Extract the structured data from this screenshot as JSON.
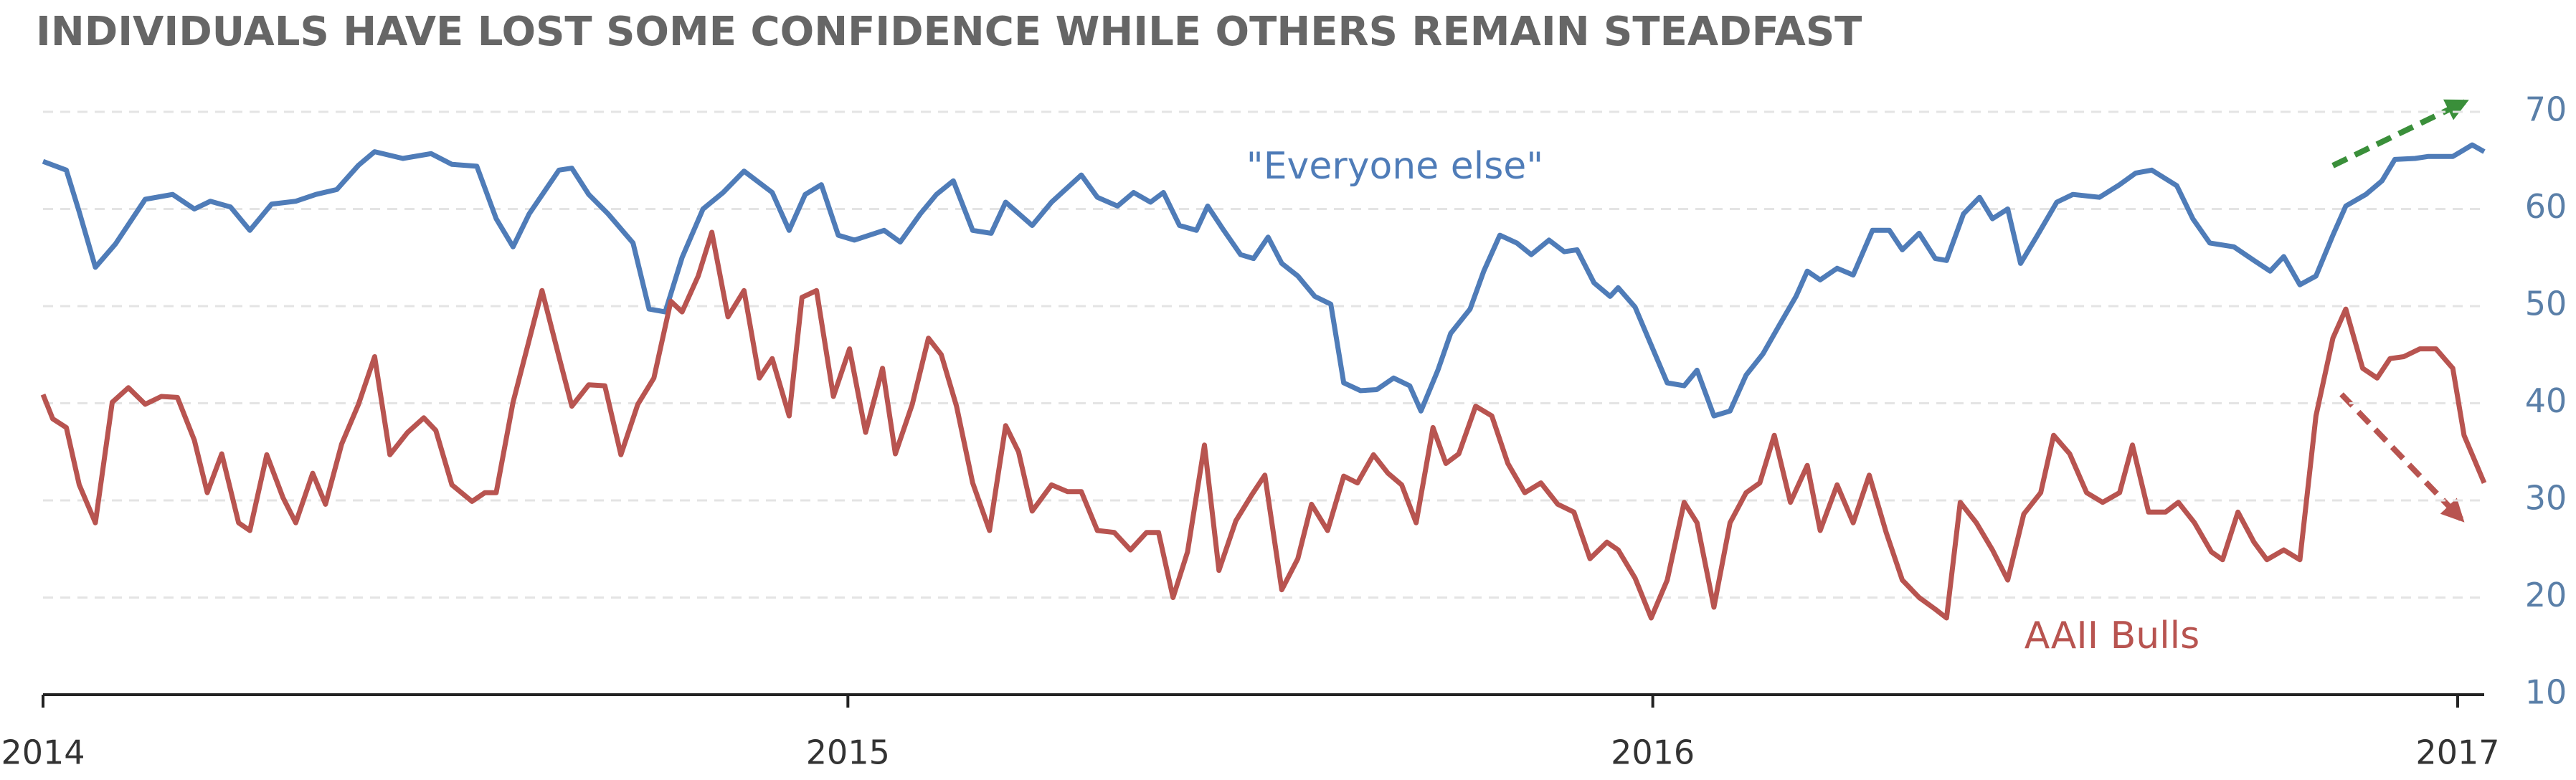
{
  "chart_data": {
    "type": "line",
    "title": "INDIVIDUALS HAVE LOST SOME CONFIDENCE WHILE OTHERS REMAIN STEADFAST",
    "xlim": [
      2014,
      2017.033
    ],
    "xticks": [
      2014,
      2015,
      2016,
      2017
    ],
    "ylim": [
      10,
      70
    ],
    "yticks": [
      10,
      20,
      30,
      40,
      50,
      60,
      70
    ],
    "grid": true,
    "series": [
      {
        "name": "\"Everyone else\"",
        "color": "#4f7cb8",
        "x": [
          2014.0,
          2014.029,
          2014.045,
          2014.065,
          2014.09,
          2014.127,
          2014.161,
          2014.188,
          2014.208,
          2014.233,
          2014.257,
          2014.284,
          2014.314,
          2014.339,
          2014.365,
          2014.392,
          2014.412,
          2014.447,
          2014.482,
          2014.508,
          2014.539,
          2014.563,
          2014.584,
          2014.604,
          2014.641,
          2014.657,
          2014.678,
          2014.702,
          2014.733,
          2014.753,
          2014.773,
          2014.794,
          2014.82,
          2014.845,
          2014.871,
          2014.906,
          2014.927,
          2014.947,
          2014.967,
          2014.988,
          2015.008,
          2015.045,
          2015.065,
          2015.09,
          2015.11,
          2015.131,
          2015.155,
          2015.178,
          2015.196,
          2015.229,
          2015.253,
          2015.29,
          2015.31,
          2015.335,
          2015.355,
          2015.376,
          2015.392,
          2015.412,
          2015.433,
          2015.447,
          2015.467,
          2015.488,
          2015.504,
          2015.522,
          2015.539,
          2015.559,
          2015.58,
          2015.6,
          2015.616,
          2015.637,
          2015.657,
          2015.678,
          2015.698,
          2015.712,
          2015.733,
          2015.749,
          2015.773,
          2015.79,
          2015.81,
          2015.831,
          2015.849,
          2015.871,
          2015.89,
          2015.906,
          2015.927,
          2015.947,
          2015.957,
          2015.978,
          2015.998,
          2016.018,
          2016.039,
          2016.055,
          2016.076,
          2016.096,
          2016.116,
          2016.137,
          2016.157,
          2016.178,
          2016.192,
          2016.208,
          2016.229,
          2016.249,
          2016.273,
          2016.294,
          2016.31,
          2016.331,
          2016.351,
          2016.365,
          2016.386,
          2016.406,
          2016.422,
          2016.441,
          2016.457,
          2016.478,
          2016.502,
          2016.522,
          2016.555,
          2016.58,
          2016.6,
          2016.62,
          2016.651,
          2016.671,
          2016.692,
          2016.722,
          2016.747,
          2016.767,
          2016.784,
          2016.804,
          2016.824,
          2016.845,
          2016.861,
          2016.886,
          2016.906,
          2016.922,
          2016.947,
          2016.963,
          2016.994,
          2017.018,
          2017.033
        ],
        "values": [
          64.9,
          64,
          59.7,
          54,
          56.4,
          61,
          61.5,
          60,
          60.8,
          60.2,
          57.8,
          60.5,
          60.8,
          61.5,
          62,
          64.5,
          65.9,
          65.2,
          65.7,
          64.6,
          64.4,
          59,
          56.1,
          59.5,
          64,
          64.2,
          61.5,
          59.5,
          56.5,
          49.7,
          49.4,
          55,
          60,
          61.7,
          63.9,
          61.7,
          57.8,
          61.5,
          62.5,
          57.3,
          56.8,
          57.8,
          56.6,
          59.5,
          61.5,
          62.9,
          57.8,
          57.5,
          60.7,
          58.3,
          60.7,
          63.5,
          61.2,
          60.3,
          61.7,
          60.7,
          61.7,
          58.3,
          57.8,
          60.3,
          57.8,
          55.3,
          54.9,
          57.1,
          54.4,
          53.1,
          51,
          50.2,
          42.1,
          41.3,
          41.4,
          42.6,
          41.8,
          39.2,
          43.4,
          47.2,
          49.7,
          53.6,
          57.3,
          56.5,
          55.3,
          56.8,
          55.6,
          55.8,
          52.4,
          51,
          51.9,
          49.9,
          46,
          42.1,
          41.8,
          43.4,
          38.7,
          39.2,
          42.9,
          45.1,
          48,
          51,
          53.6,
          52.7,
          53.9,
          53.2,
          57.8,
          57.8,
          55.8,
          57.5,
          54.9,
          54.7,
          59.5,
          61.2,
          59,
          60,
          54.4,
          57.3,
          60.7,
          61.5,
          61.2,
          62.5,
          63.7,
          64,
          62.4,
          59,
          56.5,
          56.1,
          54.7,
          53.6,
          55.1,
          52.2,
          53.1,
          57.3,
          60.3,
          61.5,
          62.9,
          65.1,
          65.2,
          65.4,
          65.4,
          66.6,
          65.9
        ]
      },
      {
        "name": "AAII Bulls",
        "color": "#b85450",
        "x": [
          2014.0,
          2014.012,
          2014.029,
          2014.045,
          2014.065,
          2014.086,
          2014.106,
          2014.127,
          2014.147,
          2014.167,
          2014.188,
          2014.204,
          2014.222,
          2014.243,
          2014.257,
          2014.278,
          2014.298,
          2014.314,
          2014.335,
          2014.351,
          2014.371,
          2014.392,
          2014.412,
          2014.431,
          2014.453,
          2014.473,
          2014.488,
          2014.508,
          2014.533,
          2014.549,
          2014.563,
          2014.584,
          2014.62,
          2014.641,
          2014.657,
          2014.678,
          2014.698,
          2014.718,
          2014.739,
          2014.759,
          2014.78,
          2014.794,
          2014.814,
          2014.831,
          2014.851,
          2014.871,
          2014.89,
          2014.906,
          2014.927,
          2014.943,
          2014.961,
          2014.982,
          2015.002,
          2015.022,
          2015.043,
          2015.059,
          2015.08,
          2015.1,
          2015.116,
          2015.135,
          2015.155,
          2015.176,
          2015.196,
          2015.212,
          2015.229,
          2015.253,
          2015.273,
          2015.29,
          2015.31,
          2015.331,
          2015.351,
          2015.371,
          2015.386,
          2015.404,
          2015.422,
          2015.443,
          2015.461,
          2015.482,
          2015.502,
          2015.518,
          2015.539,
          2015.559,
          2015.576,
          2015.596,
          2015.616,
          2015.633,
          2015.653,
          2015.671,
          2015.688,
          2015.706,
          2015.727,
          2015.743,
          2015.759,
          2015.78,
          2015.8,
          2015.82,
          2015.841,
          2015.861,
          2015.882,
          2015.902,
          2015.922,
          2015.943,
          2015.957,
          2015.978,
          2015.998,
          2016.018,
          2016.039,
          2016.055,
          2016.076,
          2016.096,
          2016.116,
          2016.133,
          2016.151,
          2016.171,
          2016.192,
          2016.208,
          2016.229,
          2016.249,
          2016.269,
          2016.29,
          2016.31,
          2016.331,
          2016.351,
          2016.365,
          2016.382,
          2016.402,
          2016.422,
          2016.441,
          2016.461,
          2016.482,
          2016.498,
          2016.518,
          2016.539,
          2016.559,
          2016.58,
          2016.596,
          2016.616,
          2016.637,
          2016.653,
          2016.673,
          2016.694,
          2016.708,
          2016.727,
          2016.747,
          2016.763,
          2016.784,
          2016.804,
          2016.824,
          2016.845,
          2016.861,
          2016.882,
          2016.9,
          2016.916,
          2016.933,
          2016.953,
          2016.973,
          2016.994,
          2017.008,
          2017.033
        ],
        "values": [
          40.9,
          38.4,
          37.5,
          31.6,
          27.7,
          40.1,
          41.6,
          39.9,
          40.7,
          40.6,
          36.2,
          30.8,
          34.8,
          27.7,
          26.9,
          34.7,
          30.3,
          27.7,
          32.8,
          29.6,
          35.8,
          39.9,
          44.8,
          34.7,
          37,
          38.5,
          37.2,
          31.6,
          29.9,
          30.8,
          30.8,
          40.1,
          51.6,
          44.8,
          39.7,
          41.9,
          41.8,
          34.7,
          39.9,
          42.6,
          50.5,
          49.4,
          53.1,
          57.6,
          48.9,
          51.6,
          42.6,
          44.6,
          38.7,
          50.9,
          51.6,
          40.7,
          45.6,
          37,
          43.6,
          34.8,
          39.9,
          46.7,
          45,
          39.7,
          31.8,
          26.9,
          37.7,
          35,
          28.9,
          31.6,
          30.9,
          30.9,
          26.9,
          26.7,
          24.9,
          26.7,
          26.7,
          20,
          24.7,
          35.7,
          22.8,
          27.9,
          30.6,
          32.6,
          20.8,
          24,
          29.6,
          26.9,
          32.5,
          31.8,
          34.7,
          32.8,
          31.6,
          27.7,
          37.5,
          33.8,
          34.8,
          39.7,
          38.7,
          33.8,
          30.8,
          31.8,
          29.6,
          28.8,
          24,
          25.7,
          24.9,
          22,
          17.9,
          21.8,
          29.8,
          27.7,
          19,
          27.7,
          30.8,
          31.8,
          36.7,
          29.8,
          33.6,
          26.9,
          31.6,
          27.7,
          32.6,
          26.7,
          21.8,
          20,
          18.8,
          17.9,
          29.8,
          27.7,
          24.9,
          21.8,
          28.6,
          30.8,
          36.7,
          34.8,
          30.8,
          29.8,
          30.8,
          35.7,
          28.8,
          28.8,
          29.8,
          27.7,
          24.7,
          23.9,
          28.8,
          25.7,
          23.9,
          24.9,
          23.9,
          38.7,
          46.7,
          49.7,
          43.6,
          42.6,
          44.6,
          44.8,
          45.6,
          45.6,
          43.6,
          36.7,
          31.8
        ]
      }
    ]
  }
}
